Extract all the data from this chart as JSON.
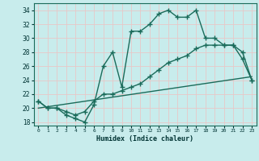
{
  "xlabel": "Humidex (Indice chaleur)",
  "bg_color": "#c8ecec",
  "grid_color": "#e8c8c8",
  "line_color": "#1a6b5a",
  "line1_x": [
    0,
    1,
    2,
    3,
    4,
    5,
    6,
    7,
    8,
    9,
    10,
    11,
    12,
    13,
    14,
    15,
    16,
    17,
    18,
    19,
    20,
    21,
    22,
    23
  ],
  "line1_y": [
    21,
    20,
    20,
    19,
    18.5,
    18,
    20.5,
    26,
    28,
    23,
    31,
    31,
    32,
    33.5,
    34,
    33,
    33,
    34,
    30,
    30,
    29,
    29,
    27,
    24
  ],
  "line2_x": [
    0,
    1,
    2,
    3,
    4,
    5,
    6,
    7,
    8,
    9,
    10,
    11,
    12,
    13,
    14,
    15,
    16,
    17,
    18,
    19,
    20,
    21,
    22,
    23
  ],
  "line2_y": [
    21,
    20,
    20,
    19.5,
    19,
    19.5,
    21,
    22,
    22,
    22.5,
    23,
    23.5,
    24.5,
    25.5,
    26.5,
    27,
    27.5,
    28.5,
    29,
    29,
    29,
    29,
    28,
    24
  ],
  "line3_x": [
    0,
    23
  ],
  "line3_y": [
    20,
    24.5
  ],
  "ylim": [
    17.5,
    35
  ],
  "xlim": [
    -0.5,
    23.5
  ],
  "yticks": [
    18,
    20,
    22,
    24,
    26,
    28,
    30,
    32,
    34
  ],
  "xticks": [
    0,
    1,
    2,
    3,
    4,
    5,
    6,
    7,
    8,
    9,
    10,
    11,
    12,
    13,
    14,
    15,
    16,
    17,
    18,
    19,
    20,
    21,
    22,
    23
  ],
  "xtick_labels": [
    "0",
    "1",
    "2",
    "3",
    "4",
    "5",
    "6",
    "7",
    "8",
    "9",
    "10",
    "11",
    "12",
    "13",
    "14",
    "15",
    "16",
    "17",
    "18",
    "19",
    "20",
    "21",
    "22",
    "23"
  ],
  "marker": "+",
  "marker_size": 4,
  "linewidth": 1.0
}
